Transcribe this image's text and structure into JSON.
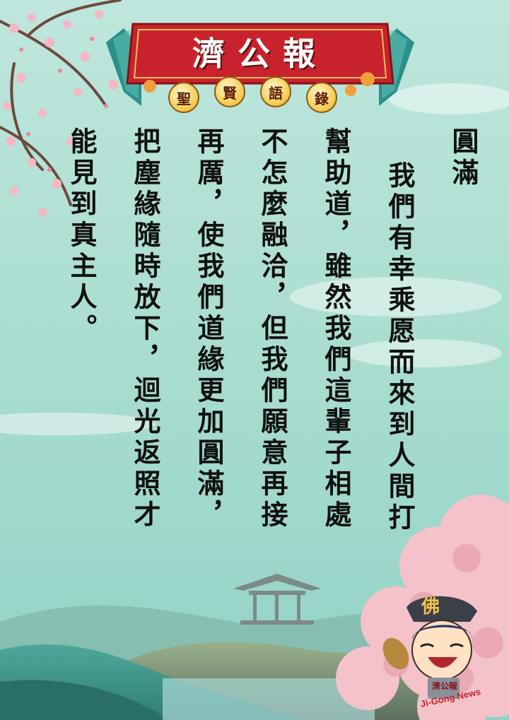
{
  "banner": {
    "title": "濟公報",
    "subtitle_chars": [
      "聖",
      "賢",
      "語",
      "錄"
    ]
  },
  "poem": {
    "title": "圓滿",
    "columns": [
      "我們有幸乘愿而來到人間打",
      "幫助道，雖然我們這輩子相處",
      "不怎麼融洽，但我們願意再接",
      "再厲，使我們道緣更加圓滿，",
      "把塵緣隨時放下，迴光返照才",
      "能見到真主人。"
    ]
  },
  "mascot": {
    "hat_char": "佛",
    "badge": "濟公報",
    "brand": "Ji-Gong News"
  },
  "colors": {
    "sky": "#a8ddd3",
    "banner_red": "#c8232c",
    "banner_teal": "#2b8f8a",
    "blossom": "#f2b3bd"
  }
}
